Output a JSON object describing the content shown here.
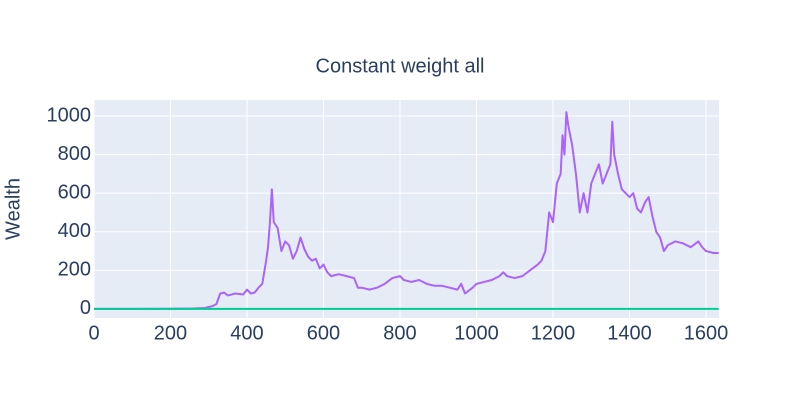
{
  "chart_data": {
    "type": "line",
    "title": "Constant weight all",
    "y_label": "Wealth",
    "xlim": [
      0,
      1634
    ],
    "ylim": [
      -47,
      1083
    ],
    "xticks": [
      0,
      200,
      400,
      600,
      800,
      1000,
      1200,
      1400,
      1600
    ],
    "yticks": [
      0,
      200,
      400,
      600,
      800,
      1000
    ],
    "grid": true,
    "series": [
      {
        "color": "#ab63fa",
        "x": [
          0,
          100,
          200,
          260,
          290,
          310,
          320,
          330,
          340,
          350,
          370,
          390,
          400,
          410,
          420,
          430,
          440,
          450,
          455,
          460,
          465,
          470,
          480,
          490,
          500,
          510,
          520,
          530,
          540,
          550,
          560,
          570,
          580,
          590,
          600,
          610,
          620,
          640,
          660,
          680,
          690,
          700,
          720,
          740,
          760,
          780,
          800,
          810,
          830,
          850,
          870,
          890,
          910,
          930,
          950,
          960,
          970,
          990,
          1000,
          1020,
          1040,
          1060,
          1070,
          1080,
          1100,
          1120,
          1140,
          1160,
          1170,
          1180,
          1190,
          1200,
          1210,
          1220,
          1225,
          1230,
          1235,
          1240,
          1250,
          1260,
          1270,
          1280,
          1290,
          1300,
          1310,
          1320,
          1330,
          1340,
          1350,
          1355,
          1360,
          1370,
          1380,
          1390,
          1400,
          1410,
          1420,
          1430,
          1440,
          1450,
          1460,
          1470,
          1480,
          1490,
          1500,
          1520,
          1540,
          1560,
          1580,
          1590,
          1600,
          1620,
          1633
        ],
        "values": [
          0,
          0,
          1,
          2,
          5,
          15,
          25,
          80,
          85,
          70,
          80,
          75,
          100,
          80,
          85,
          110,
          130,
          250,
          320,
          450,
          620,
          450,
          420,
          300,
          350,
          330,
          260,
          300,
          370,
          310,
          270,
          250,
          260,
          210,
          230,
          190,
          170,
          180,
          170,
          160,
          110,
          110,
          100,
          110,
          130,
          160,
          170,
          150,
          140,
          150,
          130,
          120,
          120,
          110,
          100,
          130,
          80,
          110,
          130,
          140,
          150,
          170,
          190,
          170,
          160,
          170,
          200,
          230,
          250,
          300,
          500,
          450,
          650,
          700,
          900,
          800,
          1020,
          950,
          850,
          700,
          500,
          600,
          500,
          650,
          700,
          750,
          650,
          700,
          750,
          970,
          800,
          700,
          620,
          600,
          580,
          600,
          520,
          500,
          550,
          580,
          480,
          400,
          370,
          300,
          330,
          350,
          340,
          320,
          350,
          320,
          300,
          290,
          290
        ]
      },
      {
        "color": "#00cc96",
        "x": [
          0,
          1633
        ],
        "values": [
          0,
          0
        ]
      }
    ]
  }
}
